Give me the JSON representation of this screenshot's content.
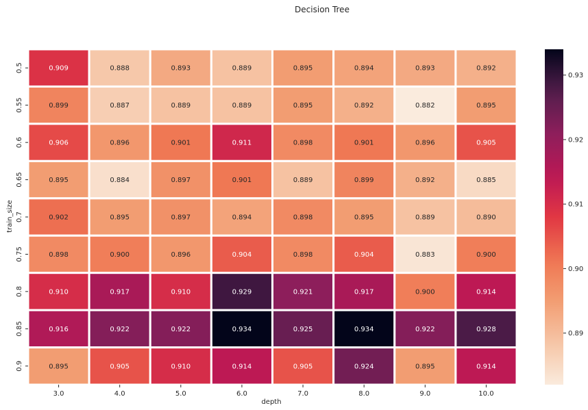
{
  "chart_data": {
    "type": "heatmap",
    "title": "Decision Tree",
    "xlabel": "depth",
    "ylabel": "train_size",
    "x_categories": [
      "3.0",
      "4.0",
      "5.0",
      "6.0",
      "7.0",
      "8.0",
      "9.0",
      "10.0"
    ],
    "y_categories": [
      "0.5",
      "0.55",
      "0.6",
      "0.65",
      "0.7",
      "0.75",
      "0.8",
      "0.85",
      "0.9"
    ],
    "values": [
      [
        0.909,
        0.888,
        0.893,
        0.889,
        0.895,
        0.894,
        0.893,
        0.892
      ],
      [
        0.899,
        0.887,
        0.889,
        0.889,
        0.895,
        0.892,
        0.882,
        0.895
      ],
      [
        0.906,
        0.896,
        0.901,
        0.911,
        0.898,
        0.901,
        0.896,
        0.905
      ],
      [
        0.895,
        0.884,
        0.897,
        0.901,
        0.889,
        0.899,
        0.892,
        0.885
      ],
      [
        0.902,
        0.895,
        0.897,
        0.894,
        0.898,
        0.895,
        0.889,
        0.89
      ],
      [
        0.898,
        0.9,
        0.896,
        0.904,
        0.898,
        0.904,
        0.883,
        0.9
      ],
      [
        0.91,
        0.917,
        0.91,
        0.929,
        0.921,
        0.917,
        0.9,
        0.914
      ],
      [
        0.916,
        0.922,
        0.922,
        0.934,
        0.925,
        0.934,
        0.922,
        0.928
      ],
      [
        0.895,
        0.905,
        0.91,
        0.914,
        0.905,
        0.924,
        0.895,
        0.914
      ]
    ],
    "colorbar": {
      "range": [
        0.882,
        0.934
      ],
      "ticks": [
        "0.89",
        "0.90",
        "0.91",
        "0.92",
        "0.93"
      ],
      "tick_values": [
        0.89,
        0.9,
        0.91,
        0.92,
        0.93
      ],
      "colormap": "rocket_r"
    },
    "value_format": "0.000",
    "grid_lines": "white"
  }
}
